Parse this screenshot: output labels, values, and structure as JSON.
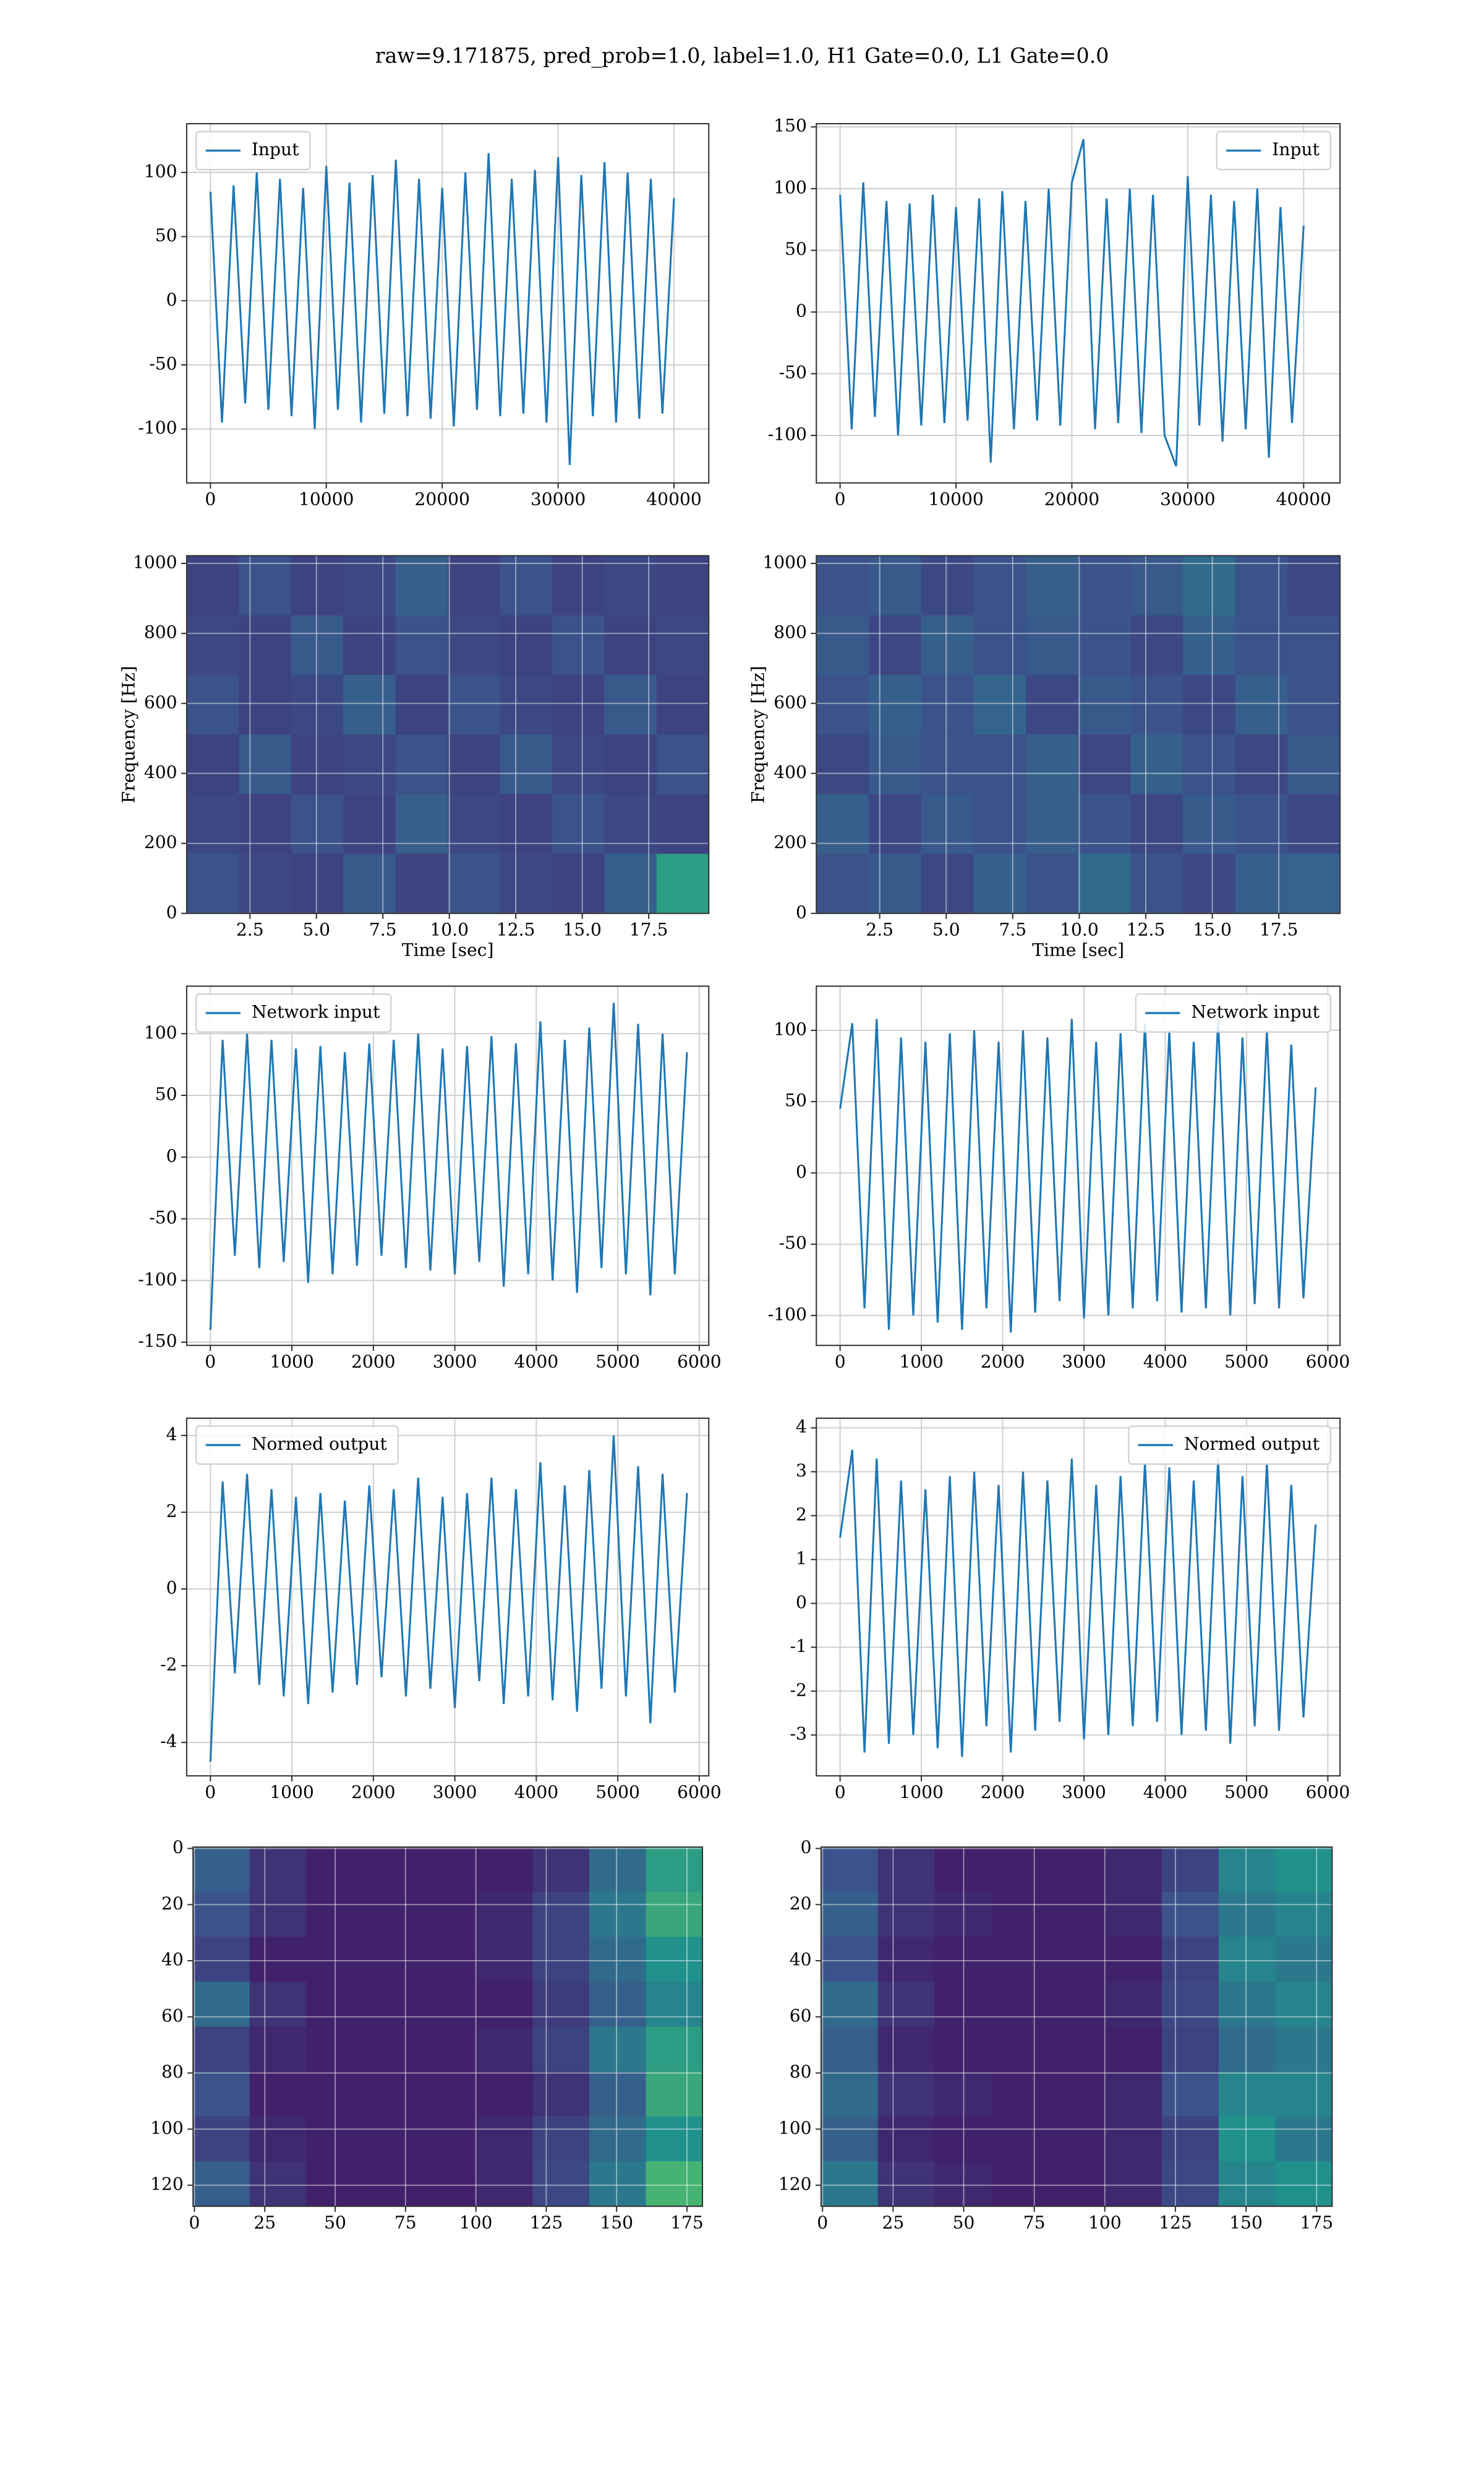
{
  "title": "raw=9.171875, pred_prob=1.0, label=1.0, H1 Gate=0.0, L1 Gate=0.0",
  "chart_data": [
    {
      "type": "line",
      "grid": true,
      "legend": "upper left",
      "xlim": [
        -2048,
        43000
      ],
      "ylim": [
        -142,
        138
      ],
      "xticks": [
        0,
        10000,
        20000,
        30000,
        40000
      ],
      "yticks": [
        -100,
        -50,
        0,
        50,
        100
      ],
      "series": [
        {
          "name": "Input",
          "color": "#1f77b4",
          "x": [
            0,
            1000,
            2000,
            3000,
            4000,
            5000,
            6000,
            7000,
            8000,
            9000,
            10000,
            11000,
            12000,
            13000,
            14000,
            15000,
            16000,
            17000,
            18000,
            19000,
            20000,
            21000,
            22000,
            23000,
            24000,
            25000,
            26000,
            27000,
            28000,
            29000,
            30000,
            31000,
            32000,
            33000,
            34000,
            35000,
            36000,
            37000,
            38000,
            39000,
            40000
          ],
          "values": [
            85,
            -95,
            90,
            -80,
            100,
            -85,
            95,
            -90,
            88,
            -100,
            105,
            -85,
            92,
            -95,
            98,
            -88,
            110,
            -90,
            95,
            -92,
            88,
            -98,
            100,
            -85,
            115,
            -90,
            95,
            -88,
            102,
            -95,
            112,
            -128,
            98,
            -90,
            108,
            -95,
            100,
            -92,
            95,
            -88,
            80
          ]
        }
      ]
    },
    {
      "type": "line",
      "grid": true,
      "legend": "upper right",
      "xlim": [
        -2048,
        43140
      ],
      "ylim": [
        -138.5,
        152.6
      ],
      "xticks": [
        0,
        10000,
        20000,
        30000,
        40000
      ],
      "yticks": [
        -100,
        -50,
        0,
        50,
        100,
        150
      ],
      "series": [
        {
          "name": "Input",
          "color": "#1f77b4",
          "x": [
            0,
            1000,
            2000,
            3000,
            4000,
            5000,
            6000,
            7000,
            8000,
            9000,
            10000,
            11000,
            12000,
            13000,
            14000,
            15000,
            16000,
            17000,
            18000,
            19000,
            20000,
            21000,
            22000,
            23000,
            24000,
            25000,
            26000,
            27000,
            28000,
            29000,
            30000,
            31000,
            32000,
            33000,
            34000,
            35000,
            36000,
            37000,
            38000,
            39000,
            40000
          ],
          "values": [
            95,
            -95,
            105,
            -85,
            90,
            -100,
            88,
            -92,
            95,
            -90,
            85,
            -88,
            92,
            -122,
            98,
            -95,
            90,
            -88,
            100,
            -92,
            105,
            140,
            -95,
            92,
            -90,
            100,
            -98,
            95,
            -100,
            -125,
            110,
            -92,
            95,
            -105,
            90,
            -95,
            100,
            -118,
            85,
            -90,
            70
          ]
        }
      ]
    },
    {
      "type": "heatmap",
      "grid": true,
      "colormap": "viridis",
      "xlabel": "Time [sec]",
      "ylabel": "Frequency [Hz]",
      "xlim": [
        0.12,
        19.76
      ],
      "ylim": [
        0,
        1022
      ],
      "xticks": [
        2.5,
        {
          "value": 5,
          "label": "5.0"
        },
        7.5,
        {
          "value": 10,
          "label": "10.0"
        },
        12.5,
        {
          "value": 15,
          "label": "15.0"
        },
        17.5
      ],
      "yticks": [
        0,
        200,
        400,
        600,
        800,
        1000
      ],
      "z": [
        [
          0.2,
          0.25,
          0.2,
          0.22,
          0.3,
          0.2,
          0.25,
          0.2,
          0.22,
          0.2
        ],
        [
          0.22,
          0.2,
          0.28,
          0.2,
          0.25,
          0.22,
          0.2,
          0.25,
          0.2,
          0.22
        ],
        [
          0.25,
          0.2,
          0.22,
          0.3,
          0.2,
          0.25,
          0.22,
          0.2,
          0.28,
          0.2
        ],
        [
          0.2,
          0.28,
          0.2,
          0.22,
          0.25,
          0.2,
          0.28,
          0.22,
          0.2,
          0.25
        ],
        [
          0.22,
          0.2,
          0.25,
          0.2,
          0.3,
          0.22,
          0.2,
          0.25,
          0.22,
          0.2
        ],
        [
          0.25,
          0.22,
          0.2,
          0.28,
          0.2,
          0.25,
          0.22,
          0.2,
          0.3,
          0.55
        ]
      ]
    },
    {
      "type": "heatmap",
      "grid": true,
      "colormap": "viridis",
      "xlabel": "Time [sec]",
      "ylabel": "Frequency [Hz]",
      "xlim": [
        0.12,
        19.8
      ],
      "ylim": [
        0,
        1022
      ],
      "xticks": [
        2.5,
        {
          "value": 5,
          "label": "5.0"
        },
        7.5,
        {
          "value": 10,
          "label": "10.0"
        },
        12.5,
        {
          "value": 15,
          "label": "15.0"
        },
        17.5
      ],
      "yticks": [
        0,
        200,
        400,
        600,
        800,
        1000
      ],
      "z": [
        [
          0.25,
          0.28,
          0.22,
          0.25,
          0.3,
          0.25,
          0.28,
          0.35,
          0.25,
          0.22
        ],
        [
          0.28,
          0.22,
          0.3,
          0.25,
          0.28,
          0.25,
          0.22,
          0.3,
          0.25,
          0.25
        ],
        [
          0.25,
          0.3,
          0.25,
          0.32,
          0.22,
          0.28,
          0.25,
          0.22,
          0.3,
          0.25
        ],
        [
          0.22,
          0.28,
          0.25,
          0.25,
          0.3,
          0.22,
          0.3,
          0.25,
          0.22,
          0.28
        ],
        [
          0.3,
          0.22,
          0.28,
          0.25,
          0.3,
          0.25,
          0.22,
          0.28,
          0.25,
          0.22
        ],
        [
          0.25,
          0.28,
          0.22,
          0.3,
          0.25,
          0.35,
          0.25,
          0.22,
          0.3,
          0.32
        ]
      ]
    },
    {
      "type": "line",
      "grid": true,
      "legend": "upper left",
      "xlim": [
        -291,
        6117
      ],
      "ylim": [
        -152.6,
        138.5
      ],
      "xticks": [
        0,
        1000,
        2000,
        3000,
        4000,
        5000,
        6000
      ],
      "yticks": [
        -150,
        -100,
        -50,
        0,
        50,
        100
      ],
      "series": [
        {
          "name": "Network input",
          "color": "#1f77b4",
          "x": [
            0,
            150,
            300,
            450,
            600,
            750,
            900,
            1050,
            1200,
            1350,
            1500,
            1650,
            1800,
            1950,
            2100,
            2250,
            2400,
            2550,
            2700,
            2850,
            3000,
            3150,
            3300,
            3450,
            3600,
            3750,
            3900,
            4050,
            4200,
            4350,
            4500,
            4650,
            4800,
            4950,
            5100,
            5250,
            5400,
            5550,
            5700,
            5850
          ],
          "values": [
            -140,
            95,
            -80,
            100,
            -90,
            95,
            -85,
            88,
            -102,
            90,
            -95,
            85,
            -88,
            92,
            -80,
            95,
            -90,
            100,
            -92,
            88,
            -95,
            90,
            -85,
            98,
            -105,
            92,
            -95,
            110,
            -100,
            95,
            -110,
            105,
            -90,
            125,
            -95,
            108,
            -112,
            100,
            -95,
            85
          ]
        }
      ]
    },
    {
      "type": "line",
      "grid": true,
      "legend": "upper right",
      "xlim": [
        -292,
        6150
      ],
      "ylim": [
        -121,
        131
      ],
      "xticks": [
        0,
        1000,
        2000,
        3000,
        4000,
        5000,
        6000
      ],
      "yticks": [
        -100,
        -50,
        0,
        50,
        100
      ],
      "series": [
        {
          "name": "Network input",
          "color": "#1f77b4",
          "x": [
            0,
            150,
            300,
            450,
            600,
            750,
            900,
            1050,
            1200,
            1350,
            1500,
            1650,
            1800,
            1950,
            2100,
            2250,
            2400,
            2550,
            2700,
            2850,
            3000,
            3150,
            3300,
            3450,
            3600,
            3750,
            3900,
            4050,
            4200,
            4350,
            4500,
            4650,
            4800,
            4950,
            5100,
            5250,
            5400,
            5550,
            5700,
            5850
          ],
          "values": [
            45,
            105,
            -95,
            108,
            -110,
            95,
            -100,
            92,
            -105,
            98,
            -110,
            100,
            -95,
            92,
            -112,
            100,
            -98,
            95,
            -90,
            108,
            -102,
            92,
            -100,
            98,
            -95,
            105,
            -90,
            100,
            -98,
            92,
            -95,
            108,
            -100,
            95,
            -92,
            100,
            -95,
            90,
            -88,
            60
          ]
        }
      ]
    },
    {
      "type": "line",
      "grid": true,
      "legend": "upper left",
      "xlim": [
        -291,
        6117
      ],
      "ylim": [
        -4.87,
        4.45
      ],
      "xticks": [
        0,
        1000,
        2000,
        3000,
        4000,
        5000,
        6000
      ],
      "yticks": [
        -4,
        -2,
        0,
        2,
        4
      ],
      "series": [
        {
          "name": "Normed output",
          "color": "#1f77b4",
          "x": [
            0,
            150,
            300,
            450,
            600,
            750,
            900,
            1050,
            1200,
            1350,
            1500,
            1650,
            1800,
            1950,
            2100,
            2250,
            2400,
            2550,
            2700,
            2850,
            3000,
            3150,
            3300,
            3450,
            3600,
            3750,
            3900,
            4050,
            4200,
            4350,
            4500,
            4650,
            4800,
            4950,
            5100,
            5250,
            5400,
            5550,
            5700,
            5850
          ],
          "values": [
            -4.5,
            2.8,
            -2.2,
            3.0,
            -2.5,
            2.6,
            -2.8,
            2.4,
            -3.0,
            2.5,
            -2.7,
            2.3,
            -2.5,
            2.7,
            -2.3,
            2.6,
            -2.8,
            2.9,
            -2.6,
            2.4,
            -3.1,
            2.5,
            -2.4,
            2.9,
            -3.0,
            2.6,
            -2.8,
            3.3,
            -2.9,
            2.7,
            -3.2,
            3.1,
            -2.6,
            4.0,
            -2.8,
            3.2,
            -3.5,
            3.0,
            -2.7,
            2.5
          ]
        }
      ]
    },
    {
      "type": "line",
      "grid": true,
      "legend": "upper right",
      "xlim": [
        -292,
        6150
      ],
      "ylim": [
        -3.93,
        4.22
      ],
      "xticks": [
        0,
        1000,
        2000,
        3000,
        4000,
        5000,
        6000
      ],
      "yticks": [
        -3,
        -2,
        -1,
        0,
        1,
        2,
        3,
        4
      ],
      "series": [
        {
          "name": "Normed output",
          "color": "#1f77b4",
          "x": [
            0,
            150,
            300,
            450,
            600,
            750,
            900,
            1050,
            1200,
            1350,
            1500,
            1650,
            1800,
            1950,
            2100,
            2250,
            2400,
            2550,
            2700,
            2850,
            3000,
            3150,
            3300,
            3450,
            3600,
            3750,
            3900,
            4050,
            4200,
            4350,
            4500,
            4650,
            4800,
            4950,
            5100,
            5250,
            5400,
            5550,
            5700,
            5850
          ],
          "values": [
            1.5,
            3.5,
            -3.4,
            3.3,
            -3.2,
            2.8,
            -3.0,
            2.6,
            -3.3,
            2.9,
            -3.5,
            3.0,
            -2.8,
            2.7,
            -3.4,
            3.0,
            -2.9,
            2.8,
            -2.7,
            3.3,
            -3.1,
            2.7,
            -3.0,
            2.9,
            -2.8,
            3.2,
            -2.7,
            3.1,
            -3.0,
            2.8,
            -2.9,
            3.3,
            -3.2,
            2.9,
            -2.8,
            3.2,
            -2.9,
            2.7,
            -2.6,
            1.8
          ]
        }
      ]
    },
    {
      "type": "heatmap",
      "grid": true,
      "colormap": "viridis",
      "xlim": [
        -0.5,
        180.5
      ],
      "ylim": [
        127.5,
        -0.5
      ],
      "xticks": [
        0,
        25,
        50,
        75,
        100,
        125,
        150,
        175
      ],
      "yticks": [
        0,
        20,
        40,
        60,
        80,
        100,
        120
      ],
      "z": [
        [
          0.3,
          0.15,
          0.1,
          0.1,
          0.1,
          0.1,
          0.15,
          0.35,
          0.55
        ],
        [
          0.25,
          0.15,
          0.1,
          0.1,
          0.1,
          0.12,
          0.2,
          0.4,
          0.6
        ],
        [
          0.2,
          0.1,
          0.1,
          0.1,
          0.1,
          0.12,
          0.2,
          0.35,
          0.5
        ],
        [
          0.35,
          0.15,
          0.1,
          0.1,
          0.1,
          0.1,
          0.18,
          0.3,
          0.45
        ],
        [
          0.2,
          0.12,
          0.1,
          0.1,
          0.1,
          0.12,
          0.2,
          0.4,
          0.55
        ],
        [
          0.25,
          0.1,
          0.1,
          0.1,
          0.1,
          0.1,
          0.15,
          0.3,
          0.6
        ],
        [
          0.2,
          0.12,
          0.1,
          0.1,
          0.1,
          0.12,
          0.2,
          0.35,
          0.5
        ],
        [
          0.3,
          0.15,
          0.1,
          0.1,
          0.1,
          0.12,
          0.22,
          0.4,
          0.65
        ]
      ]
    },
    {
      "type": "heatmap",
      "grid": true,
      "colormap": "viridis",
      "xlim": [
        -0.5,
        180.5
      ],
      "ylim": [
        127.5,
        -0.5
      ],
      "xticks": [
        0,
        25,
        50,
        75,
        100,
        125,
        150,
        175
      ],
      "yticks": [
        0,
        20,
        40,
        60,
        80,
        100,
        120
      ],
      "z": [
        [
          0.25,
          0.15,
          0.1,
          0.1,
          0.1,
          0.12,
          0.2,
          0.45,
          0.5
        ],
        [
          0.3,
          0.15,
          0.12,
          0.1,
          0.1,
          0.12,
          0.25,
          0.4,
          0.45
        ],
        [
          0.25,
          0.12,
          0.1,
          0.1,
          0.1,
          0.1,
          0.2,
          0.45,
          0.4
        ],
        [
          0.35,
          0.15,
          0.1,
          0.1,
          0.1,
          0.12,
          0.22,
          0.4,
          0.45
        ],
        [
          0.3,
          0.12,
          0.1,
          0.1,
          0.1,
          0.1,
          0.2,
          0.35,
          0.4
        ],
        [
          0.35,
          0.15,
          0.12,
          0.1,
          0.1,
          0.12,
          0.25,
          0.45,
          0.45
        ],
        [
          0.3,
          0.12,
          0.1,
          0.1,
          0.1,
          0.12,
          0.2,
          0.5,
          0.4
        ],
        [
          0.4,
          0.15,
          0.12,
          0.1,
          0.1,
          0.12,
          0.22,
          0.45,
          0.5
        ]
      ]
    }
  ]
}
